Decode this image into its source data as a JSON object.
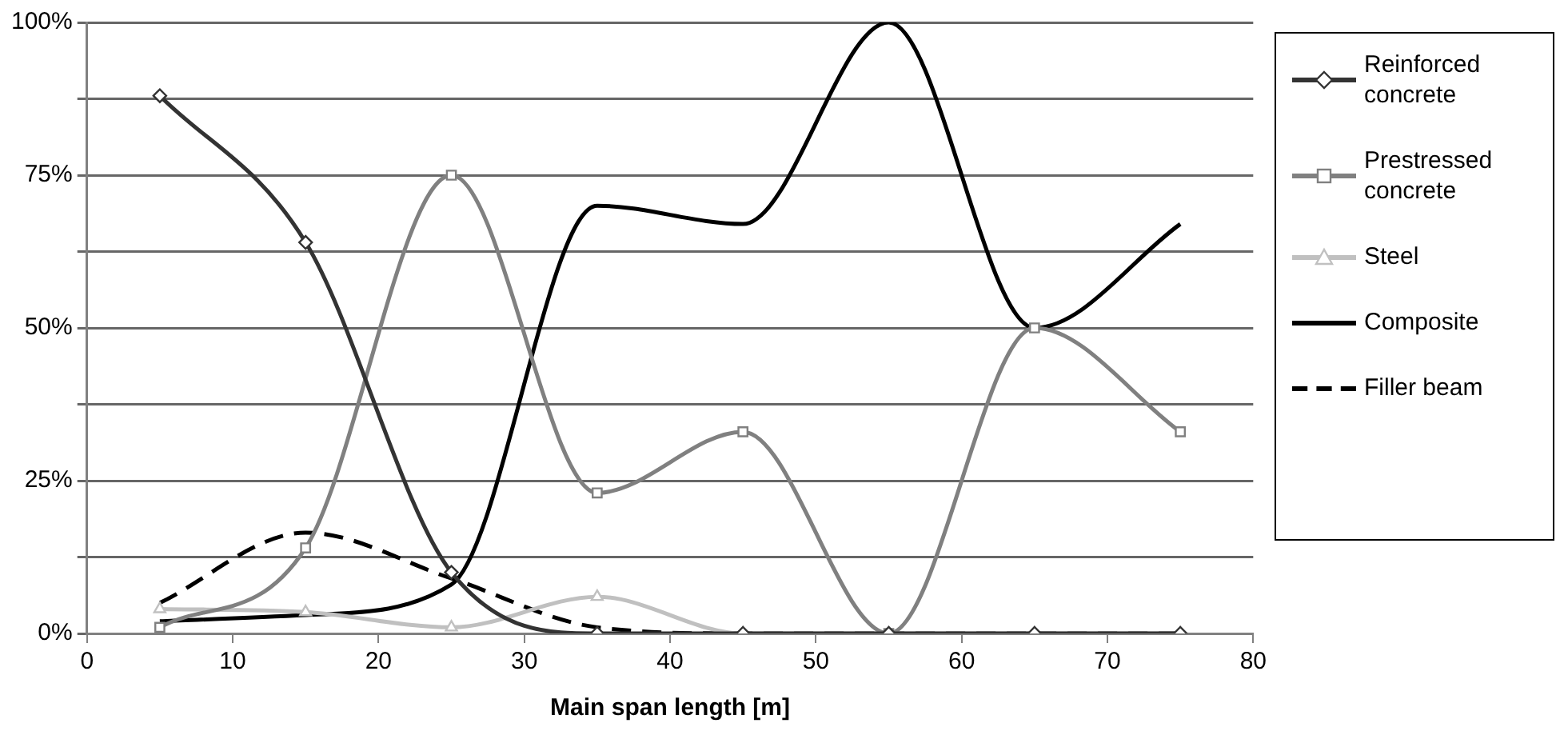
{
  "chart_data": {
    "type": "line",
    "xlabel": "Main span length [m]",
    "x": [
      5,
      15,
      25,
      35,
      45,
      55,
      65,
      75
    ],
    "series": [
      {
        "name": "Reinforced concrete",
        "color": "#333333",
        "marker": "diamond",
        "values": [
          88,
          64,
          10,
          0,
          0,
          0,
          0,
          0
        ]
      },
      {
        "name": "Prestressed concrete",
        "color": "#808080",
        "marker": "square",
        "values": [
          1,
          14,
          75,
          23,
          33,
          0,
          50,
          33
        ]
      },
      {
        "name": "Steel",
        "color": "#c0c0c0",
        "marker": "triangle",
        "values": [
          4,
          3.5,
          1,
          6,
          0,
          0,
          0,
          0
        ]
      },
      {
        "name": "Composite",
        "color": "#000000",
        "marker": "none",
        "values": [
          2,
          3,
          8,
          70,
          67,
          100,
          50,
          67
        ]
      },
      {
        "name": "Filler beam",
        "color": "#000000",
        "marker": "none",
        "line_style": "dashed",
        "values": [
          5,
          16.5,
          9,
          1,
          0,
          0,
          0,
          0
        ]
      }
    ],
    "xlim": [
      0,
      80
    ],
    "xticks": [
      0,
      10,
      20,
      30,
      40,
      50,
      60,
      70,
      80
    ],
    "ylim": [
      0,
      100
    ],
    "yticks": [
      {
        "value": 0,
        "label": "0%"
      },
      {
        "value": 12.5,
        "label": null
      },
      {
        "value": 25,
        "label": "25%"
      },
      {
        "value": 37.5,
        "label": null
      },
      {
        "value": 50,
        "label": "50%"
      },
      {
        "value": 62.5,
        "label": null
      },
      {
        "value": 75,
        "label": "75%"
      },
      {
        "value": 87.5,
        "label": null
      },
      {
        "value": 100,
        "label": "100%"
      }
    ],
    "grid": "y",
    "legend": "right"
  }
}
